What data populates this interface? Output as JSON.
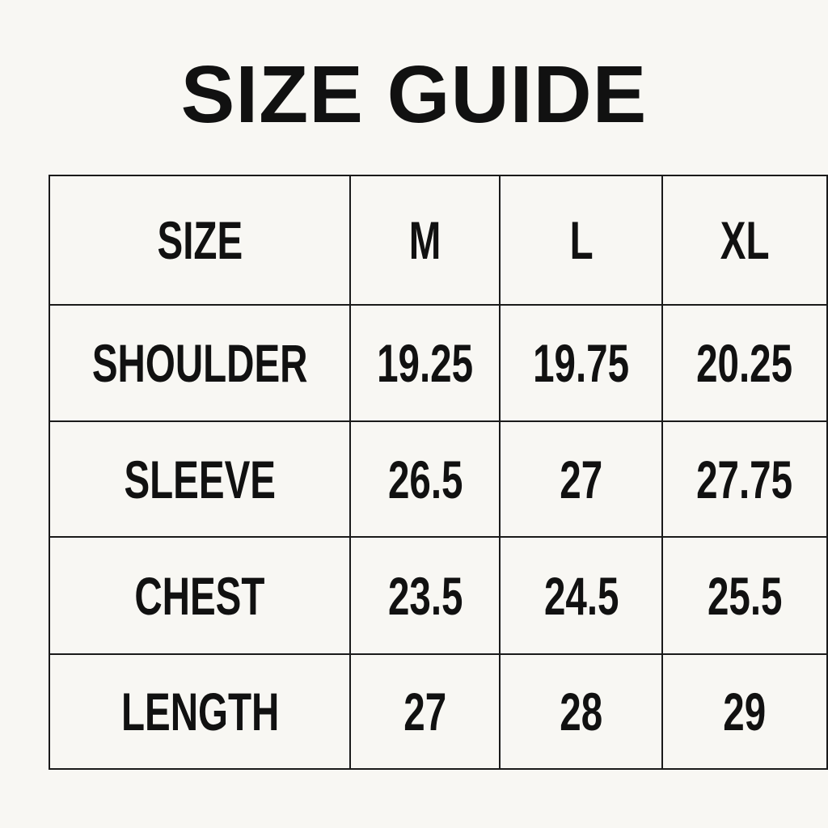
{
  "title": "SIZE GUIDE",
  "table": {
    "header": [
      "SIZE",
      "M",
      "L",
      "XL"
    ],
    "rows": [
      [
        "SHOULDER",
        "19.25",
        "19.75",
        "20.25"
      ],
      [
        "SLEEVE",
        "26.5",
        "27",
        "27.75"
      ],
      [
        "CHEST",
        "23.5",
        "24.5",
        "25.5"
      ],
      [
        "LENGTH",
        "27",
        "28",
        "29"
      ]
    ]
  },
  "colors": {
    "background": "#f8f7f3",
    "text": "#111111",
    "border": "#1a1a1a"
  }
}
